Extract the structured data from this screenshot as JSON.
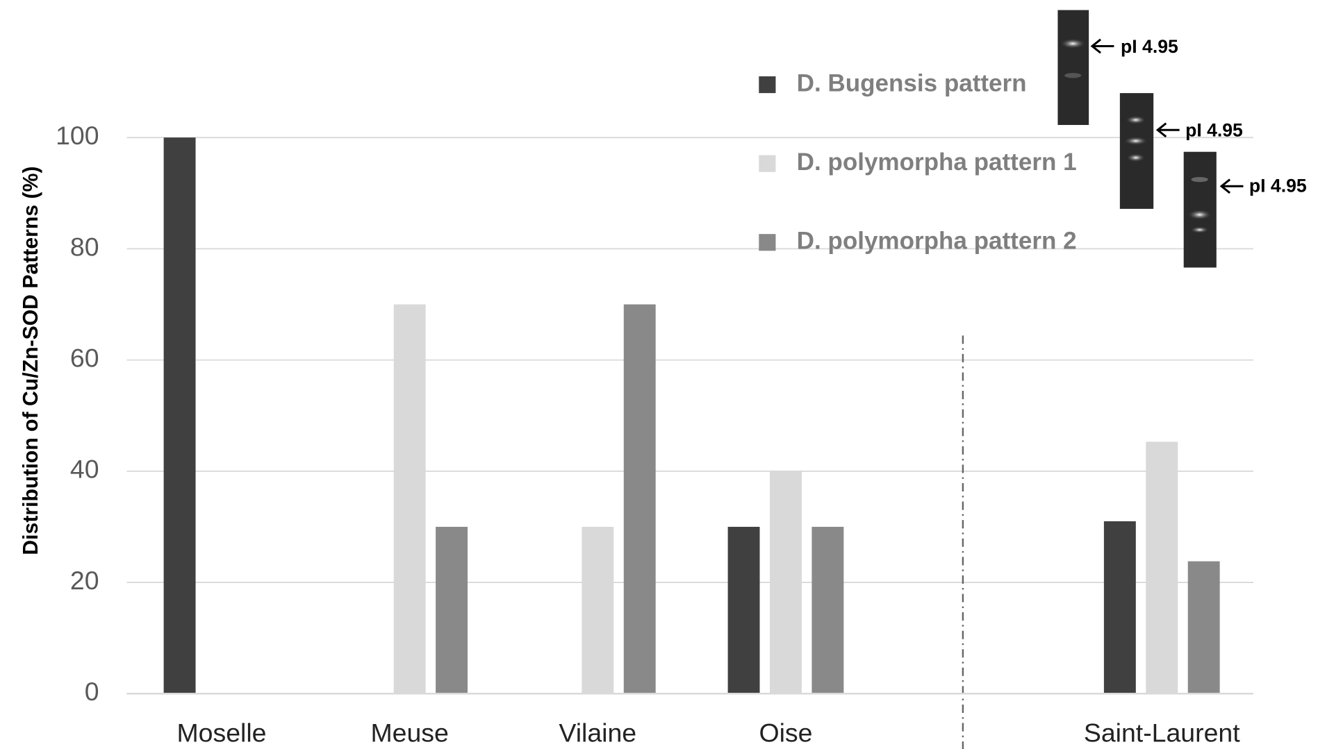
{
  "chart_data": {
    "type": "bar",
    "y_label": "Distribution of Cu/Zn-SOD Patterns (%)",
    "categories": [
      "Moselle",
      "Meuse",
      "Vilaine",
      "Oise",
      "Saint-Laurent"
    ],
    "series": [
      {
        "name": "D. Bugensis pattern",
        "color": "#404040",
        "values": [
          100,
          0,
          0,
          30,
          31
        ]
      },
      {
        "name": "D. polymorpha pattern 1",
        "color": "#d9d9d9",
        "values": [
          0,
          70,
          30,
          40,
          45.3
        ]
      },
      {
        "name": "D. polymorpha pattern 2",
        "color": "#898989",
        "values": [
          0,
          30,
          70,
          30,
          23.8
        ]
      }
    ],
    "ylim": [
      0,
      100
    ],
    "yticks": [
      0,
      20,
      40,
      60,
      80,
      100
    ],
    "grid": true,
    "annotations": [
      "pI 4.95",
      "pI 4.95",
      "pI 4.95"
    ]
  }
}
